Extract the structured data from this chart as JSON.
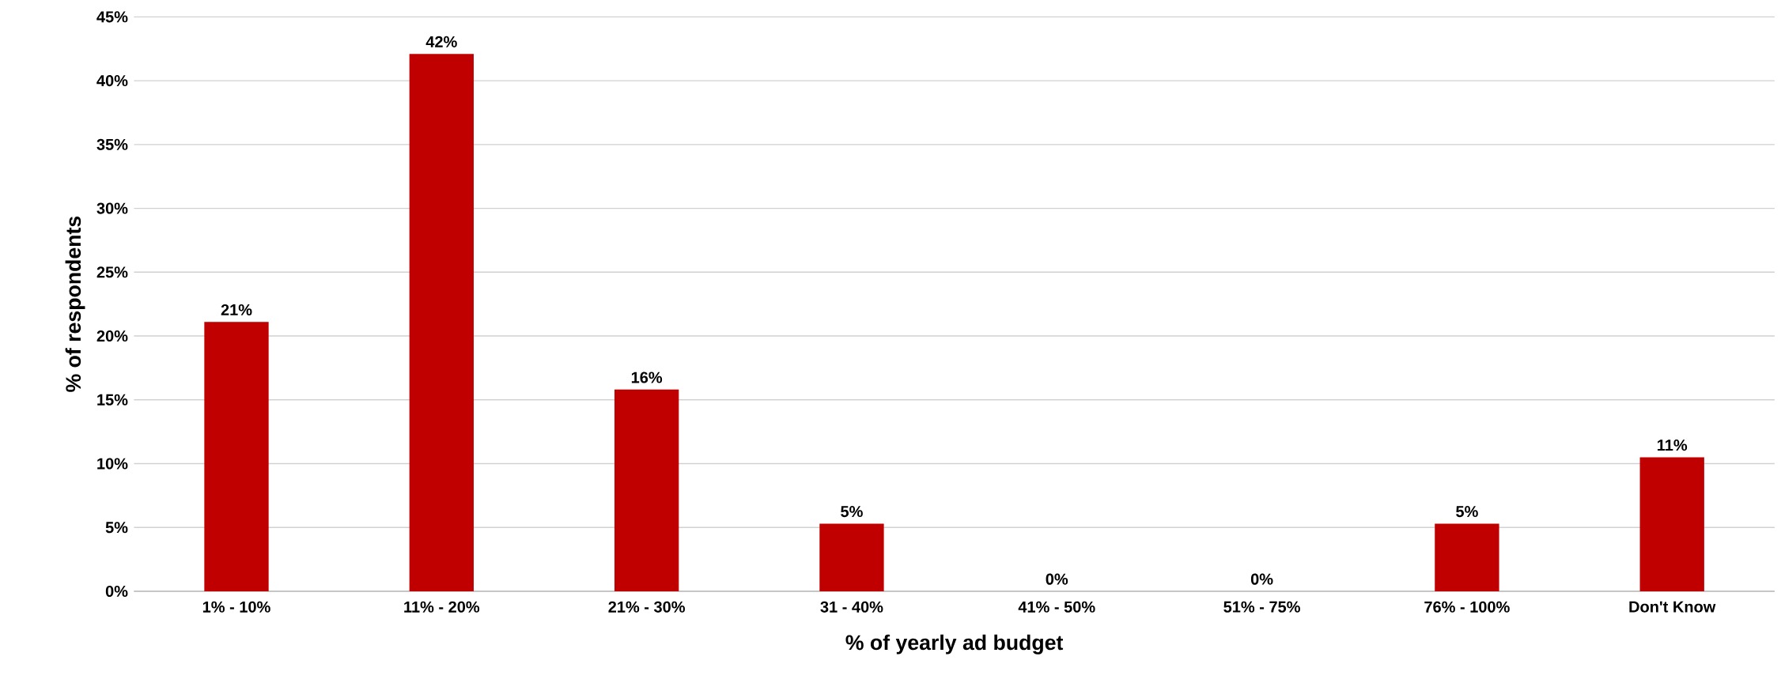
{
  "chart_data": {
    "type": "bar",
    "xlabel": "% of yearly ad budget",
    "ylabel": "% of respondents",
    "categories": [
      "1% - 10%",
      "11% - 20%",
      "21% - 30%",
      "31 - 40%",
      "41% - 50%",
      "51% - 75%",
      "76% - 100%",
      "Don't Know"
    ],
    "values": [
      21.1,
      42.1,
      15.8,
      5.3,
      0,
      0,
      5.3,
      10.5
    ],
    "value_labels": [
      "21%",
      "42%",
      "16%",
      "5%",
      "0%",
      "0%",
      "5%",
      "11%"
    ],
    "color": "#c00000",
    "ylim": [
      0,
      45
    ],
    "yticks": [
      {
        "value": 0,
        "label": "0%"
      },
      {
        "value": 5,
        "label": "5%"
      },
      {
        "value": 10,
        "label": "10%"
      },
      {
        "value": 15,
        "label": "15%"
      },
      {
        "value": 20,
        "label": "20%"
      },
      {
        "value": 25,
        "label": "25%"
      },
      {
        "value": 30,
        "label": "30%"
      },
      {
        "value": 35,
        "label": "35%"
      },
      {
        "value": 40,
        "label": "40%"
      },
      {
        "value": 45,
        "label": "45%"
      }
    ],
    "grid": "y"
  }
}
